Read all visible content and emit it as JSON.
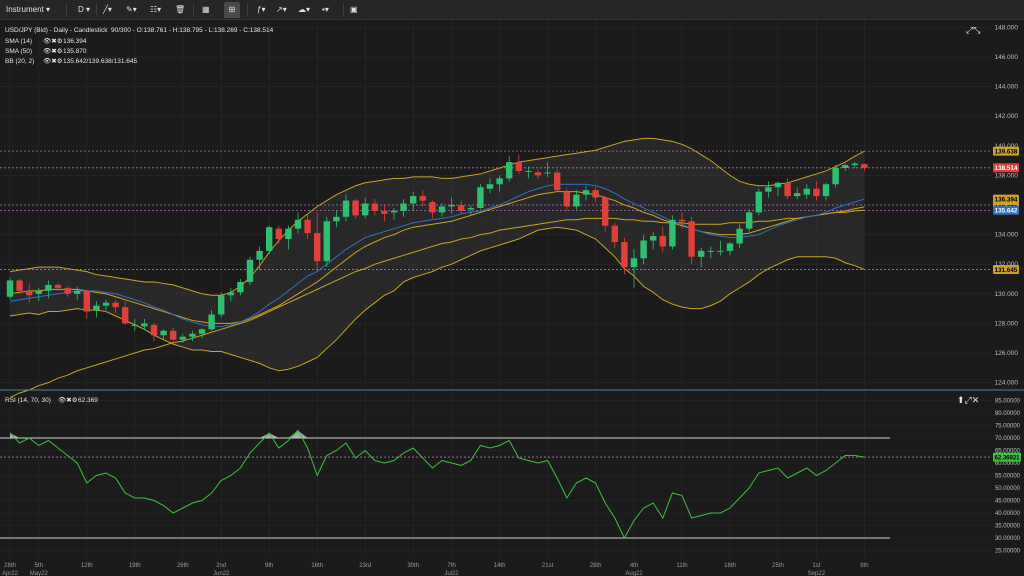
{
  "toolbar": {
    "instrument_label": "Instrument",
    "period_label": "D",
    "icons": [
      "draw-line-icon",
      "measure-icon",
      "fib-icon",
      "delete-icon",
      "layout-icon",
      "grid-icon",
      "indicator-icon",
      "template-icon",
      "language-flag-icon",
      "camera-icon"
    ]
  },
  "main": {
    "legend": [
      {
        "name": "USD/JPY (Bid) - Daily - Candlestick",
        "values": "90/300 - O:138.761 - H:138.795 - L:138.269 - C:138.514"
      },
      {
        "name": "SMA (14)",
        "values": "136.394"
      },
      {
        "name": "SMA (50)",
        "values": "135.870"
      },
      {
        "name": "BB (20, 2)",
        "values": "135.642/139.638/131.645"
      }
    ],
    "price_tags": [
      {
        "value": 139.638,
        "text": "139.638",
        "bg": "#c9a227",
        "fg": "#000000"
      },
      {
        "value": 138.514,
        "text": "138.514",
        "bg": "#e0403a",
        "fg": "#ffffff"
      },
      {
        "value": 136.394,
        "text": "136.394",
        "bg": "#c9a227",
        "fg": "#000000"
      },
      {
        "value": 135.87,
        "text": "135.870",
        "bg": "#c9a227",
        "fg": "#000000"
      },
      {
        "value": 135.642,
        "text": "135.642",
        "bg": "#2f6fc0",
        "fg": "#ffffff"
      },
      {
        "value": 131.645,
        "text": "131.645",
        "bg": "#c9a227",
        "fg": "#000000"
      }
    ],
    "ref_lines": [
      139.638,
      138.514,
      136.0,
      135.62,
      131.645
    ],
    "y_ticks": [
      124,
      126,
      128,
      130,
      132,
      134,
      136,
      138,
      140,
      142,
      144,
      146,
      148
    ]
  },
  "rsi": {
    "label": "RSI (14, 70, 30)",
    "value_text": "62.369",
    "tag_text": "62.36921",
    "value": 62.369,
    "overbought": 70,
    "oversold": 30,
    "y_ticks": [
      "85.00000",
      "80.00000",
      "75.00000",
      "70.00000",
      "65.00000",
      "60.00000",
      "55.00000",
      "50.00000",
      "45.00000",
      "40.00000",
      "35.00000",
      "30.00000",
      "25.00000"
    ]
  },
  "x_axis": [
    {
      "i": 0,
      "top": "28th",
      "bottom": "Apr22"
    },
    {
      "i": 3,
      "top": "5th",
      "bottom": "May22"
    },
    {
      "i": 8,
      "top": "12th",
      "bottom": ""
    },
    {
      "i": 13,
      "top": "19th",
      "bottom": ""
    },
    {
      "i": 18,
      "top": "26th",
      "bottom": ""
    },
    {
      "i": 22,
      "top": "2nd",
      "bottom": "Jun22"
    },
    {
      "i": 27,
      "top": "9th",
      "bottom": ""
    },
    {
      "i": 32,
      "top": "16th",
      "bottom": ""
    },
    {
      "i": 37,
      "top": "23rd",
      "bottom": ""
    },
    {
      "i": 42,
      "top": "30th",
      "bottom": ""
    },
    {
      "i": 46,
      "top": "7th",
      "bottom": "Jul22"
    },
    {
      "i": 51,
      "top": "14th",
      "bottom": ""
    },
    {
      "i": 56,
      "top": "21st",
      "bottom": ""
    },
    {
      "i": 61,
      "top": "28th",
      "bottom": ""
    },
    {
      "i": 65,
      "top": "4th",
      "bottom": "Aug22"
    },
    {
      "i": 70,
      "top": "11th",
      "bottom": ""
    },
    {
      "i": 75,
      "top": "18th",
      "bottom": ""
    },
    {
      "i": 80,
      "top": "25th",
      "bottom": ""
    },
    {
      "i": 84,
      "top": "1st",
      "bottom": "Sep22"
    },
    {
      "i": 89,
      "top": "8th",
      "bottom": ""
    }
  ],
  "colors": {
    "up": "#2fbf71",
    "down": "#e0403a",
    "sma14": "#2f6fc0",
    "sma50": "#c9a227",
    "bb": "#c9a227",
    "rsi": "#3fbf3f",
    "ref": "#b070c0",
    "bg": "#1b1b1b",
    "grid": "#2a2a2a"
  },
  "chart_data": {
    "type": "candlestick",
    "instrument": "USD/JPY (Bid)",
    "timeframe": "Daily",
    "ylim": [
      123.5,
      148.5
    ],
    "candles": [
      [
        129.8,
        131.1,
        129.6,
        130.9
      ],
      [
        130.9,
        131.0,
        130.0,
        130.2
      ],
      [
        130.2,
        130.7,
        129.4,
        129.9
      ],
      [
        130.0,
        130.4,
        129.5,
        130.2
      ],
      [
        130.2,
        130.9,
        129.7,
        130.6
      ],
      [
        130.6,
        130.7,
        130.2,
        130.4
      ],
      [
        130.4,
        130.5,
        129.8,
        130.0
      ],
      [
        130.0,
        130.5,
        129.6,
        130.2
      ],
      [
        130.2,
        130.3,
        128.3,
        128.8
      ],
      [
        128.9,
        129.5,
        128.4,
        129.2
      ],
      [
        129.2,
        129.6,
        128.9,
        129.4
      ],
      [
        129.4,
        129.6,
        128.7,
        129.1
      ],
      [
        129.1,
        129.5,
        127.9,
        128.0
      ],
      [
        127.9,
        128.3,
        127.5,
        127.9
      ],
      [
        127.8,
        128.3,
        127.6,
        128.0
      ],
      [
        127.9,
        128.0,
        126.8,
        127.2
      ],
      [
        127.2,
        127.6,
        126.9,
        127.5
      ],
      [
        127.5,
        127.7,
        126.6,
        126.9
      ],
      [
        126.9,
        127.3,
        126.7,
        127.1
      ],
      [
        127.1,
        127.5,
        126.8,
        127.3
      ],
      [
        127.3,
        127.7,
        127.0,
        127.6
      ],
      [
        127.6,
        128.9,
        127.5,
        128.6
      ],
      [
        128.6,
        130.1,
        128.4,
        129.9
      ],
      [
        129.9,
        130.4,
        129.5,
        130.1
      ],
      [
        130.1,
        131.0,
        129.9,
        130.8
      ],
      [
        130.8,
        132.5,
        130.6,
        132.3
      ],
      [
        132.3,
        133.2,
        131.6,
        132.9
      ],
      [
        132.9,
        134.6,
        132.7,
        134.5
      ],
      [
        134.4,
        134.6,
        133.4,
        133.7
      ],
      [
        133.7,
        134.6,
        133.0,
        134.4
      ],
      [
        134.4,
        135.5,
        134.1,
        135.0
      ],
      [
        135.0,
        135.4,
        133.7,
        134.1
      ],
      [
        134.1,
        135.5,
        131.5,
        132.2
      ],
      [
        132.2,
        135.2,
        131.8,
        134.9
      ],
      [
        134.9,
        135.6,
        134.5,
        135.2
      ],
      [
        135.2,
        136.7,
        134.9,
        136.3
      ],
      [
        136.3,
        136.4,
        135.1,
        135.3
      ],
      [
        135.3,
        136.5,
        135.1,
        136.1
      ],
      [
        136.1,
        136.4,
        135.3,
        135.6
      ],
      [
        135.6,
        136.0,
        134.9,
        135.4
      ],
      [
        135.5,
        135.8,
        135.0,
        135.6
      ],
      [
        135.6,
        136.4,
        135.2,
        136.1
      ],
      [
        136.1,
        136.9,
        135.6,
        136.6
      ],
      [
        136.6,
        137.0,
        135.9,
        136.3
      ],
      [
        136.2,
        136.3,
        135.1,
        135.5
      ],
      [
        135.5,
        136.1,
        135.2,
        135.9
      ],
      [
        135.9,
        136.5,
        135.4,
        136.0
      ],
      [
        136.0,
        136.3,
        135.4,
        135.6
      ],
      [
        135.7,
        136.0,
        135.3,
        135.8
      ],
      [
        135.8,
        137.4,
        135.7,
        137.2
      ],
      [
        137.1,
        137.8,
        136.8,
        137.4
      ],
      [
        137.4,
        138.0,
        136.9,
        137.8
      ],
      [
        137.8,
        139.3,
        137.6,
        138.9
      ],
      [
        138.9,
        139.4,
        138.1,
        138.3
      ],
      [
        138.3,
        138.6,
        137.8,
        138.3
      ],
      [
        138.2,
        138.4,
        137.8,
        138.0
      ],
      [
        138.2,
        138.9,
        137.9,
        138.2
      ],
      [
        138.2,
        138.4,
        136.9,
        137.0
      ],
      [
        136.9,
        137.1,
        135.6,
        135.9
      ],
      [
        135.9,
        137.0,
        135.7,
        136.7
      ],
      [
        136.7,
        137.3,
        136.3,
        137.0
      ],
      [
        137.0,
        137.2,
        136.2,
        136.5
      ],
      [
        136.5,
        136.6,
        134.2,
        134.6
      ],
      [
        134.6,
        134.8,
        133.1,
        133.5
      ],
      [
        133.5,
        133.8,
        131.3,
        131.8
      ],
      [
        131.8,
        133.0,
        130.4,
        132.4
      ],
      [
        132.4,
        134.0,
        132.0,
        133.6
      ],
      [
        133.6,
        134.2,
        133.0,
        133.9
      ],
      [
        133.9,
        134.5,
        132.8,
        133.2
      ],
      [
        133.2,
        135.3,
        133.0,
        135.0
      ],
      [
        135.0,
        135.5,
        134.4,
        134.9
      ],
      [
        134.9,
        135.2,
        132.0,
        132.5
      ],
      [
        132.5,
        133.1,
        131.8,
        132.9
      ],
      [
        132.9,
        133.2,
        132.4,
        132.9
      ],
      [
        132.9,
        133.6,
        132.6,
        132.9
      ],
      [
        132.9,
        133.5,
        132.6,
        133.4
      ],
      [
        133.4,
        134.7,
        133.1,
        134.4
      ],
      [
        134.4,
        135.7,
        134.2,
        135.5
      ],
      [
        135.5,
        137.1,
        135.3,
        136.9
      ],
      [
        136.9,
        137.6,
        136.5,
        137.2
      ],
      [
        137.2,
        137.6,
        136.6,
        137.5
      ],
      [
        137.5,
        137.8,
        136.4,
        136.6
      ],
      [
        136.6,
        137.2,
        136.4,
        136.8
      ],
      [
        136.7,
        137.4,
        136.4,
        137.1
      ],
      [
        137.1,
        137.6,
        136.3,
        136.6
      ],
      [
        136.6,
        137.5,
        136.3,
        137.4
      ],
      [
        137.4,
        138.7,
        137.2,
        138.5
      ],
      [
        138.5,
        138.8,
        138.3,
        138.7
      ],
      [
        138.7,
        138.9,
        138.5,
        138.8
      ],
      [
        138.761,
        138.795,
        138.269,
        138.514
      ]
    ],
    "sma14": [
      129.5,
      129.6,
      129.7,
      129.8,
      129.9,
      130.0,
      130.1,
      130.2,
      130.2,
      130.2,
      130.1,
      130.0,
      129.8,
      129.6,
      129.4,
      129.1,
      128.9,
      128.6,
      128.3,
      128.1,
      127.9,
      127.8,
      127.8,
      127.9,
      128.1,
      128.4,
      128.8,
      129.3,
      129.7,
      130.2,
      130.7,
      131.2,
      131.5,
      132.0,
      132.5,
      133.0,
      133.4,
      133.8,
      134.0,
      134.2,
      134.4,
      134.6,
      134.8,
      134.9,
      135.0,
      135.1,
      135.2,
      135.4,
      135.5,
      135.6,
      135.8,
      136.0,
      136.3,
      136.6,
      136.9,
      137.1,
      137.3,
      137.4,
      137.4,
      137.4,
      137.4,
      137.3,
      137.1,
      136.8,
      136.4,
      136.1,
      135.8,
      135.5,
      135.2,
      134.9,
      134.7,
      134.4,
      134.2,
      134.0,
      133.9,
      133.8,
      133.8,
      133.9,
      134.0,
      134.3,
      134.6,
      134.8,
      135.0,
      135.2,
      135.3,
      135.5,
      135.8,
      136.0,
      136.2,
      136.394
    ],
    "sma50": [
      123.0,
      123.3,
      123.5,
      123.8,
      124.0,
      124.3,
      124.5,
      124.8,
      125.0,
      125.2,
      125.4,
      125.6,
      125.8,
      126.0,
      126.2,
      126.3,
      126.5,
      126.7,
      126.8,
      127.0,
      127.2,
      127.4,
      127.6,
      127.8,
      128.0,
      128.2,
      128.5,
      128.8,
      129.1,
      129.4,
      129.7,
      130.0,
      130.3,
      130.6,
      130.9,
      131.2,
      131.5,
      131.7,
      132.0,
      132.2,
      132.4,
      132.6,
      132.8,
      133.0,
      133.2,
      133.4,
      133.5,
      133.7,
      133.8,
      134.0,
      134.1,
      134.3,
      134.4,
      134.5,
      134.6,
      134.7,
      134.8,
      134.9,
      135.0,
      135.0,
      135.1,
      135.1,
      135.1,
      135.1,
      135.0,
      135.0,
      134.9,
      134.9,
      134.8,
      134.8,
      134.8,
      134.7,
      134.7,
      134.7,
      134.7,
      134.8,
      134.8,
      134.8,
      134.9,
      134.9,
      135.0,
      135.1,
      135.1,
      135.2,
      135.3,
      135.4,
      135.5,
      135.6,
      135.75,
      135.87
    ],
    "bb_mid": [
      130.0,
      130.1,
      130.2,
      130.2,
      130.3,
      130.3,
      130.3,
      130.3,
      130.2,
      130.1,
      130.0,
      129.8,
      129.6,
      129.4,
      129.2,
      129.0,
      128.8,
      128.6,
      128.4,
      128.2,
      128.1,
      128.0,
      128.0,
      128.0,
      128.1,
      128.3,
      128.6,
      128.9,
      129.2,
      129.6,
      130.0,
      130.4,
      130.8,
      131.3,
      131.8,
      132.3,
      132.8,
      133.2,
      133.5,
      133.8,
      134.0,
      134.3,
      134.5,
      134.6,
      134.7,
      134.8,
      134.9,
      135.1,
      135.3,
      135.5,
      135.7,
      135.9,
      136.1,
      136.3,
      136.5,
      136.7,
      136.8,
      136.9,
      136.9,
      136.9,
      136.8,
      136.7,
      136.5,
      136.3,
      136.0,
      135.8,
      135.5,
      135.3,
      135.0,
      134.8,
      134.6,
      134.4,
      134.2,
      134.1,
      134.0,
      134.0,
      134.0,
      134.1,
      134.3,
      134.5,
      134.7,
      134.9,
      135.1,
      135.2,
      135.3,
      135.4,
      135.5,
      135.5,
      135.6,
      135.642
    ],
    "bb_upper": [
      131.5,
      131.6,
      131.7,
      131.8,
      131.8,
      131.8,
      131.7,
      131.6,
      131.5,
      131.3,
      131.2,
      131.1,
      131.0,
      130.9,
      130.8,
      130.8,
      130.7,
      130.6,
      130.4,
      130.2,
      130.0,
      129.9,
      129.9,
      130.1,
      130.5,
      131.1,
      131.9,
      132.8,
      133.6,
      134.3,
      134.9,
      135.4,
      135.9,
      136.3,
      136.7,
      137.0,
      137.3,
      137.5,
      137.6,
      137.7,
      137.8,
      137.8,
      137.9,
      137.9,
      137.9,
      137.8,
      137.8,
      137.9,
      138.0,
      138.1,
      138.3,
      138.5,
      138.7,
      138.9,
      139.0,
      139.1,
      139.2,
      139.3,
      139.4,
      139.5,
      139.6,
      139.7,
      139.9,
      140.1,
      140.3,
      140.4,
      140.5,
      140.5,
      140.4,
      140.3,
      140.1,
      139.8,
      139.4,
      139.0,
      138.5,
      138.0,
      137.6,
      137.4,
      137.3,
      137.3,
      137.4,
      137.5,
      137.7,
      137.9,
      138.1,
      138.3,
      138.6,
      138.9,
      139.3,
      139.638
    ],
    "bb_lower": [
      128.5,
      128.6,
      128.7,
      128.6,
      128.8,
      128.8,
      128.9,
      129.0,
      128.9,
      128.9,
      128.8,
      128.5,
      128.2,
      127.9,
      127.6,
      127.2,
      126.9,
      126.6,
      126.4,
      126.2,
      126.2,
      126.1,
      126.1,
      125.9,
      125.7,
      125.5,
      125.3,
      125.0,
      124.8,
      124.9,
      125.1,
      125.4,
      125.7,
      126.3,
      126.9,
      127.6,
      128.3,
      128.9,
      129.4,
      129.9,
      130.2,
      130.8,
      131.1,
      131.3,
      131.5,
      131.8,
      132.0,
      132.3,
      132.6,
      132.9,
      133.1,
      133.3,
      133.5,
      133.7,
      134.0,
      134.3,
      134.4,
      134.5,
      134.4,
      134.3,
      134.0,
      133.7,
      133.1,
      132.5,
      131.7,
      131.2,
      130.5,
      130.1,
      129.6,
      129.3,
      129.1,
      129.0,
      129.0,
      129.2,
      129.5,
      130.0,
      130.4,
      130.8,
      131.3,
      131.7,
      132.0,
      132.3,
      132.5,
      132.5,
      132.5,
      132.5,
      132.4,
      132.1,
      131.9,
      131.645
    ],
    "rsi": [
      72,
      68,
      70,
      67,
      69,
      66,
      63,
      60,
      52,
      55,
      56,
      54,
      48,
      46,
      46,
      45,
      43,
      40,
      42,
      44,
      45,
      48,
      53,
      55,
      58,
      64,
      68,
      72,
      66,
      69,
      73,
      66,
      55,
      63,
      65,
      68,
      62,
      65,
      61,
      60,
      61,
      64,
      66,
      62,
      58,
      61,
      60,
      59,
      61,
      67,
      66,
      67,
      69,
      62,
      61,
      60,
      61,
      54,
      46,
      52,
      54,
      52,
      44,
      38,
      30,
      37,
      42,
      44,
      38,
      48,
      47,
      38,
      39,
      40,
      40,
      42,
      46,
      50,
      56,
      57,
      58,
      54,
      56,
      58,
      55,
      57,
      60,
      63,
      63,
      62.369
    ]
  }
}
